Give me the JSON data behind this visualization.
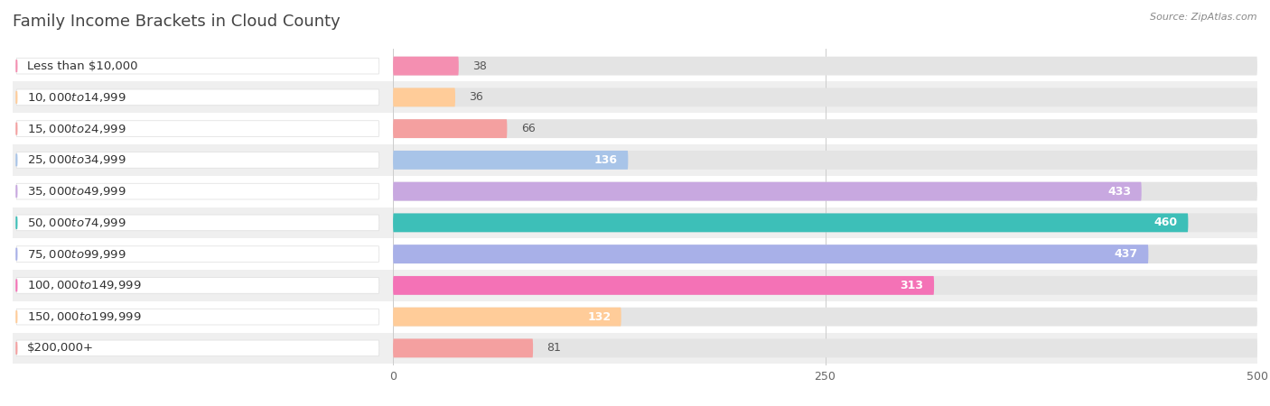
{
  "title": "Family Income Brackets in Cloud County",
  "source": "Source: ZipAtlas.com",
  "categories": [
    "Less than $10,000",
    "$10,000 to $14,999",
    "$15,000 to $24,999",
    "$25,000 to $34,999",
    "$35,000 to $49,999",
    "$50,000 to $74,999",
    "$75,000 to $99,999",
    "$100,000 to $149,999",
    "$150,000 to $199,999",
    "$200,000+"
  ],
  "values": [
    38,
    36,
    66,
    136,
    433,
    460,
    437,
    313,
    132,
    81
  ],
  "bar_colors": [
    "#F48FB1",
    "#FFCC99",
    "#F4A0A0",
    "#A8C4E8",
    "#C8A8E0",
    "#3DBFB8",
    "#A8B0E8",
    "#F472B6",
    "#FFCC99",
    "#F4A0A0"
  ],
  "background_color": "#FFFFFF",
  "row_bg_colors": [
    "#FFFFFF",
    "#EFEFEF"
  ],
  "bar_bg_color": "#E4E4E4",
  "xlim": [
    0,
    500
  ],
  "xticks": [
    0,
    250,
    500
  ],
  "title_fontsize": 13,
  "label_fontsize": 9.5,
  "value_fontsize": 9
}
